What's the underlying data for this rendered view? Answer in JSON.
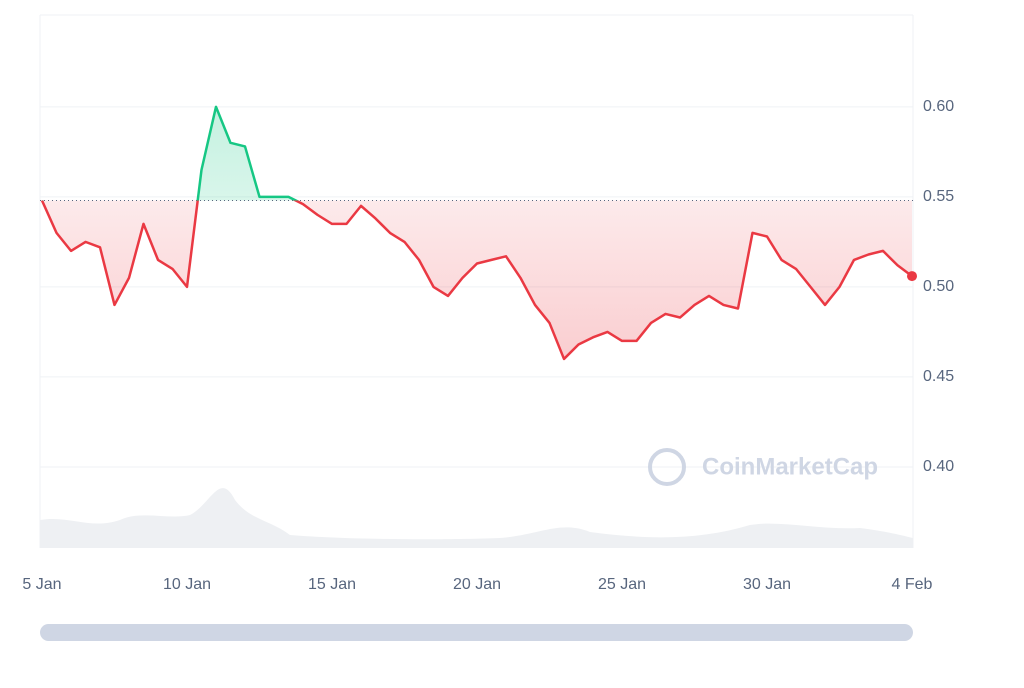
{
  "chart_data": {
    "type": "line",
    "categories": [
      "5 Jan",
      null,
      null,
      null,
      null,
      null,
      null,
      null,
      null,
      null,
      "10 Jan",
      null,
      null,
      null,
      null,
      null,
      null,
      null,
      null,
      null,
      "15 Jan",
      null,
      null,
      null,
      null,
      null,
      null,
      null,
      null,
      null,
      "20 Jan",
      null,
      null,
      null,
      null,
      null,
      null,
      null,
      null,
      null,
      "25 Jan",
      null,
      null,
      null,
      null,
      null,
      null,
      null,
      null,
      null,
      "30 Jan",
      null,
      null,
      null,
      null,
      null,
      null,
      null,
      null,
      null,
      "4 Feb"
    ],
    "values": [
      0.548,
      0.53,
      0.52,
      0.525,
      0.522,
      0.49,
      0.505,
      0.535,
      0.515,
      0.51,
      0.5,
      0.565,
      0.6,
      0.58,
      0.578,
      0.55,
      0.55,
      0.55,
      0.546,
      0.54,
      0.535,
      0.535,
      0.545,
      0.538,
      0.53,
      0.525,
      0.515,
      0.5,
      0.495,
      0.505,
      0.513,
      0.515,
      0.517,
      0.505,
      0.49,
      0.48,
      0.46,
      0.468,
      0.472,
      0.475,
      0.47,
      0.47,
      0.48,
      0.485,
      0.483,
      0.49,
      0.495,
      0.49,
      0.488,
      0.53,
      0.528,
      0.515,
      0.51,
      0.5,
      0.49,
      0.5,
      0.515,
      0.518,
      0.52,
      0.512,
      0.506
    ],
    "baseline": 0.548,
    "up_color": "#16c784",
    "down_color": "#ea3943",
    "ylim": [
      0.355,
      0.651
    ],
    "yticks": [
      {
        "value": 0.4,
        "label": "0.40"
      },
      {
        "value": 0.45,
        "label": "0.45"
      },
      {
        "value": 0.5,
        "label": "0.50"
      },
      {
        "value": 0.55,
        "label": "0.55"
      },
      {
        "value": 0.6,
        "label": "0.60"
      }
    ],
    "grid": true,
    "watermark": "CoinMarketCap"
  }
}
